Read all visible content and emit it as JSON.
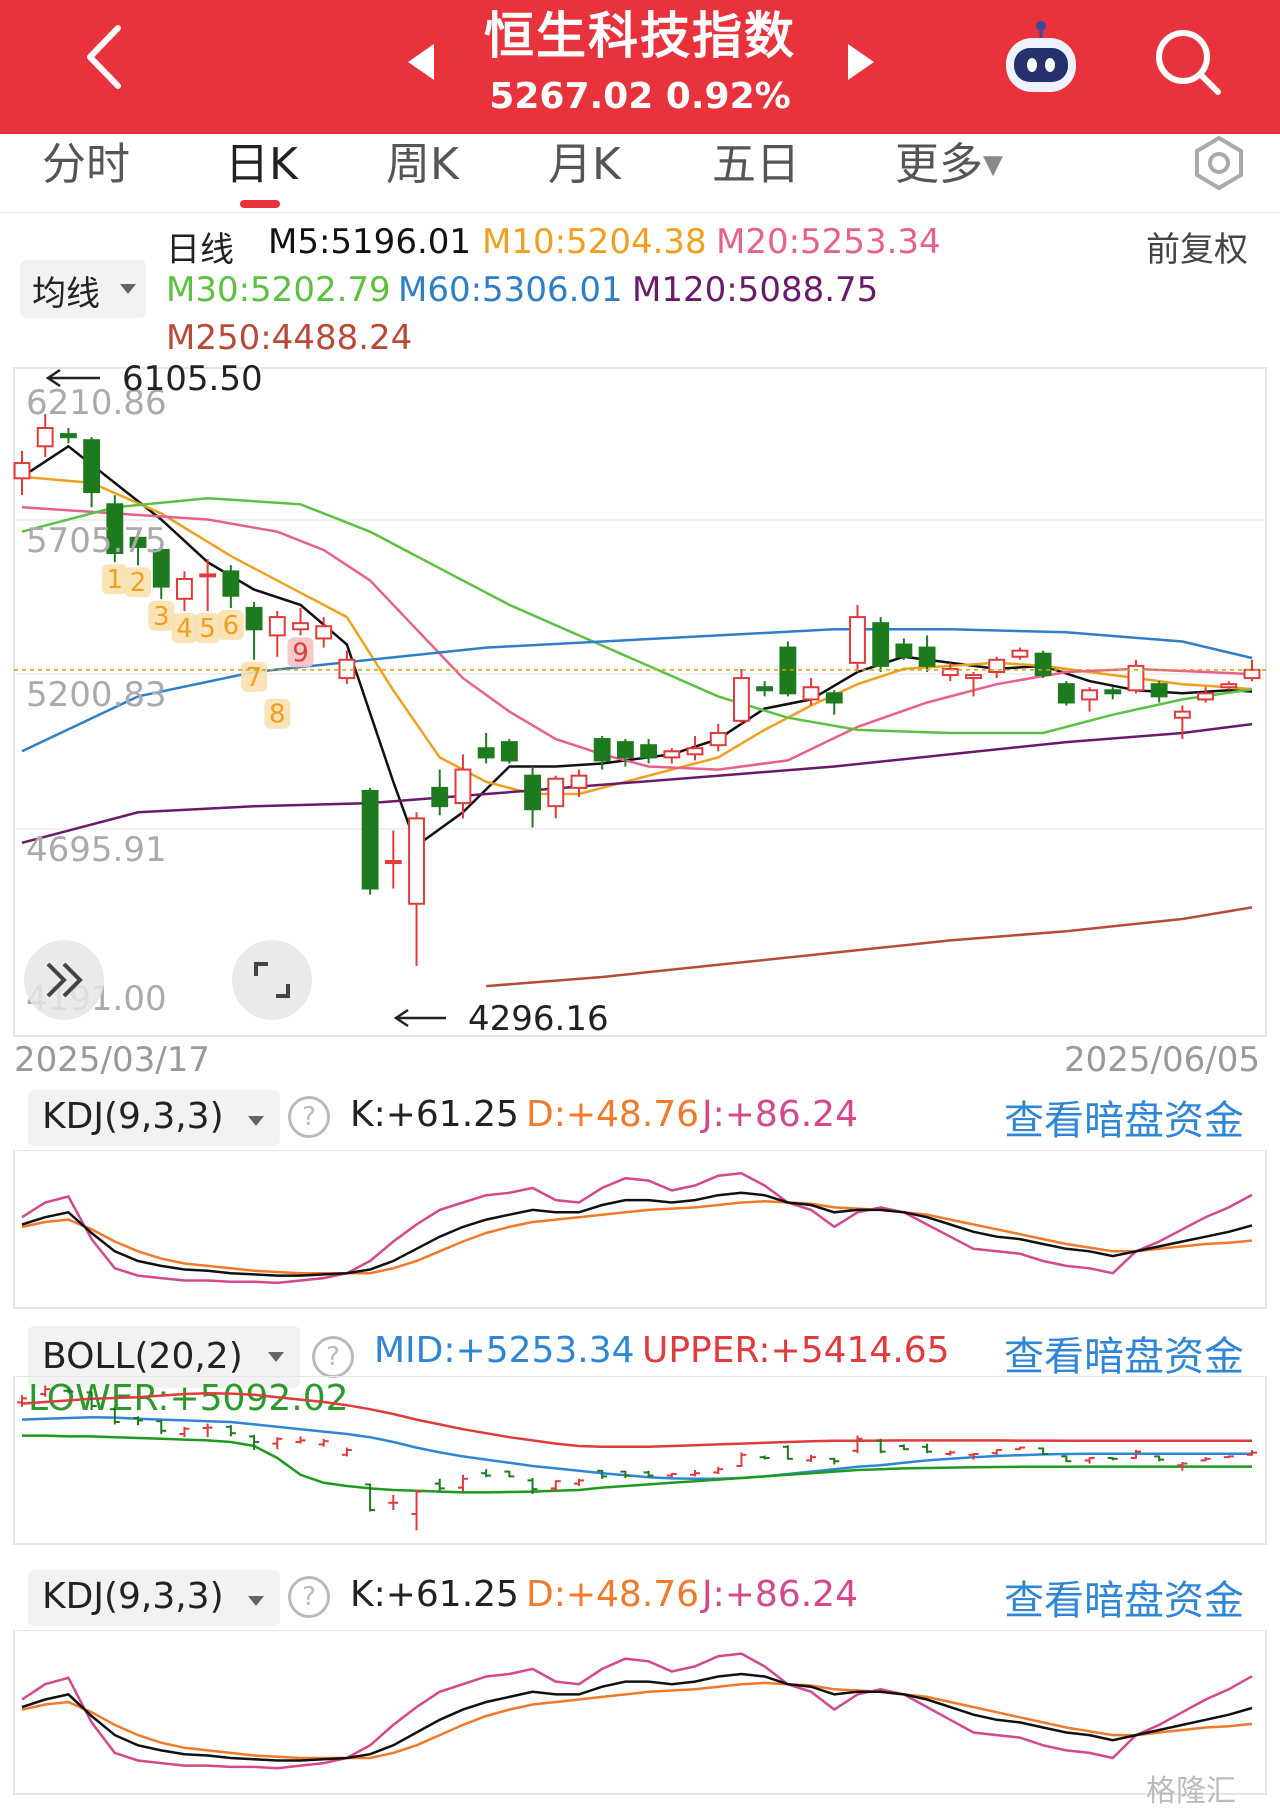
{
  "header": {
    "title": "恒生科技指数",
    "price_line": "5267.02 0.92%",
    "bg_color": "#e8333c"
  },
  "tabs": [
    {
      "label": "分时"
    },
    {
      "label": "日K",
      "active": true
    },
    {
      "label": "周K"
    },
    {
      "label": "月K"
    },
    {
      "label": "五日"
    },
    {
      "label": "更多"
    }
  ],
  "ma_legend": {
    "selector_label": "均线",
    "period_label": "日线",
    "adjust_label": "前复权",
    "items": [
      {
        "text": "M5:5196.01",
        "color": "#111111"
      },
      {
        "text": "M10:5204.38",
        "color": "#f0a020"
      },
      {
        "text": "M20:5253.34",
        "color": "#e8608c"
      },
      {
        "text": "M30:5202.79",
        "color": "#5cc040"
      },
      {
        "text": "M60:5306.01",
        "color": "#2f7fc8"
      },
      {
        "text": "M120:5088.75",
        "color": "#6a1a6a"
      },
      {
        "text": "M250:4488.24",
        "color": "#b84a3a"
      }
    ]
  },
  "main_chart": {
    "y_tick_labels": [
      "6210.86",
      "5705.75",
      "5200.83",
      "4695.91",
      "4191.00"
    ],
    "high_marker": "6105.50",
    "low_marker": "4296.16",
    "current_price_line": 5267.02,
    "date_start": "2025/03/17",
    "date_end": "2025/06/05",
    "td_numbers": [
      "1",
      "2",
      "3",
      "4",
      "5",
      "6",
      "7",
      "8",
      "9"
    ]
  },
  "kdj_panel": {
    "selector_label": "KDJ(9,3,3)",
    "k_text": "K:+61.25",
    "d_text": "D:+48.76",
    "j_text": "J:+86.24",
    "link_text": "查看暗盘资金"
  },
  "boll_panel": {
    "selector_label": "BOLL(20,2)",
    "mid_text": "MID:+5253.34",
    "upper_text": "UPPER:+5414.65",
    "lower_text": "LOWER:+5092.02",
    "link_text": "查看暗盘资金"
  },
  "kdj_panel_2": {
    "selector_label": "KDJ(9,3,3)",
    "k_text": "K:+61.25",
    "d_text": "D:+48.76",
    "j_text": "J:+86.24",
    "link_text": "查看暗盘资金"
  },
  "watermark": "格隆汇",
  "chart_data": {
    "type": "candlestick",
    "title": "恒生科技指数",
    "x_range": [
      "2025/03/17",
      "2025/06/05"
    ],
    "ylim": [
      4191.0,
      6210.86
    ],
    "y_ticks": [
      6210.86,
      5705.75,
      5200.83,
      4695.91,
      4191.0
    ],
    "candles": [
      {
        "o": 5895,
        "c": 5945,
        "h": 5985,
        "l": 5840
      },
      {
        "o": 6000,
        "c": 6060,
        "h": 6105.5,
        "l": 5965
      },
      {
        "o": 6040,
        "c": 6030,
        "h": 6060,
        "l": 6010
      },
      {
        "o": 6020,
        "c": 5850,
        "h": 6030,
        "l": 5800
      },
      {
        "o": 5810,
        "c": 5650,
        "h": 5840,
        "l": 5620
      },
      {
        "o": 5700,
        "c": 5670,
        "h": 5720,
        "l": 5610
      },
      {
        "o": 5660,
        "c": 5540,
        "h": 5680,
        "l": 5500
      },
      {
        "o": 5500,
        "c": 5565,
        "h": 5590,
        "l": 5460
      },
      {
        "o": 5575,
        "c": 5580,
        "h": 5630,
        "l": 5460
      },
      {
        "o": 5590,
        "c": 5510,
        "h": 5610,
        "l": 5470
      },
      {
        "o": 5470,
        "c": 5400,
        "h": 5490,
        "l": 5300
      },
      {
        "o": 5380,
        "c": 5440,
        "h": 5460,
        "l": 5310
      },
      {
        "o": 5400,
        "c": 5420,
        "h": 5470,
        "l": 5380
      },
      {
        "o": 5370,
        "c": 5410,
        "h": 5440,
        "l": 5340
      },
      {
        "o": 5240,
        "c": 5300,
        "h": 5330,
        "l": 5220
      },
      {
        "o": 4870,
        "c": 4550,
        "h": 4880,
        "l": 4530
      },
      {
        "o": 4640,
        "c": 4640,
        "h": 4740,
        "l": 4550
      },
      {
        "o": 4500,
        "c": 4780,
        "h": 4800,
        "l": 4296.16
      },
      {
        "o": 4880,
        "c": 4820,
        "h": 4940,
        "l": 4790
      },
      {
        "o": 4830,
        "c": 4940,
        "h": 4990,
        "l": 4780
      },
      {
        "o": 5010,
        "c": 4980,
        "h": 5060,
        "l": 4960
      },
      {
        "o": 5030,
        "c": 4970,
        "h": 5040,
        "l": 4960
      },
      {
        "o": 4920,
        "c": 4810,
        "h": 4950,
        "l": 4750
      },
      {
        "o": 4820,
        "c": 4910,
        "h": 4920,
        "l": 4780
      },
      {
        "o": 4880,
        "c": 4920,
        "h": 4940,
        "l": 4850
      },
      {
        "o": 5040,
        "c": 4970,
        "h": 5050,
        "l": 4940
      },
      {
        "o": 5030,
        "c": 4980,
        "h": 5040,
        "l": 4950
      },
      {
        "o": 5020,
        "c": 4980,
        "h": 5040,
        "l": 4960
      },
      {
        "o": 4980,
        "c": 5000,
        "h": 5010,
        "l": 4960
      },
      {
        "o": 4990,
        "c": 5010,
        "h": 5050,
        "l": 4970
      },
      {
        "o": 5020,
        "c": 5060,
        "h": 5090,
        "l": 5000
      },
      {
        "o": 5100,
        "c": 5240,
        "h": 5270,
        "l": 5090
      },
      {
        "o": 5210,
        "c": 5200,
        "h": 5230,
        "l": 5180
      },
      {
        "o": 5340,
        "c": 5190,
        "h": 5360,
        "l": 5180
      },
      {
        "o": 5170,
        "c": 5210,
        "h": 5240,
        "l": 5150
      },
      {
        "o": 5190,
        "c": 5160,
        "h": 5200,
        "l": 5120
      },
      {
        "o": 5290,
        "c": 5440,
        "h": 5480,
        "l": 5260
      },
      {
        "o": 5420,
        "c": 5280,
        "h": 5440,
        "l": 5260
      },
      {
        "o": 5350,
        "c": 5310,
        "h": 5370,
        "l": 5300
      },
      {
        "o": 5340,
        "c": 5280,
        "h": 5380,
        "l": 5260
      },
      {
        "o": 5250,
        "c": 5270,
        "h": 5290,
        "l": 5230
      },
      {
        "o": 5240,
        "c": 5250,
        "h": 5260,
        "l": 5180
      },
      {
        "o": 5260,
        "c": 5300,
        "h": 5310,
        "l": 5240
      },
      {
        "o": 5310,
        "c": 5330,
        "h": 5340,
        "l": 5300
      },
      {
        "o": 5320,
        "c": 5250,
        "h": 5330,
        "l": 5240
      },
      {
        "o": 5220,
        "c": 5160,
        "h": 5230,
        "l": 5150
      },
      {
        "o": 5170,
        "c": 5200,
        "h": 5210,
        "l": 5130
      },
      {
        "o": 5200,
        "c": 5190,
        "h": 5210,
        "l": 5170
      },
      {
        "o": 5200,
        "c": 5280,
        "h": 5300,
        "l": 5190
      },
      {
        "o": 5220,
        "c": 5180,
        "h": 5230,
        "l": 5160
      },
      {
        "o": 5110,
        "c": 5130,
        "h": 5150,
        "l": 5040
      },
      {
        "o": 5170,
        "c": 5190,
        "h": 5210,
        "l": 5160
      },
      {
        "o": 5210,
        "c": 5220,
        "h": 5230,
        "l": 5200
      },
      {
        "o": 5240,
        "c": 5267.02,
        "h": 5300,
        "l": 5230
      }
    ],
    "moving_averages": [
      {
        "name": "M5",
        "color": "#111111",
        "values": [
          [
            0,
            5900
          ],
          [
            2,
            6000
          ],
          [
            4,
            5880
          ],
          [
            6,
            5760
          ],
          [
            8,
            5620
          ],
          [
            10,
            5530
          ],
          [
            12,
            5480
          ],
          [
            14,
            5350
          ],
          [
            16,
            4900
          ],
          [
            17,
            4690
          ],
          [
            19,
            4800
          ],
          [
            21,
            4950
          ],
          [
            23,
            4950
          ],
          [
            25,
            4960
          ],
          [
            28,
            4990
          ],
          [
            30,
            5040
          ],
          [
            32,
            5140
          ],
          [
            34,
            5170
          ],
          [
            36,
            5260
          ],
          [
            38,
            5310
          ],
          [
            40,
            5290
          ],
          [
            42,
            5270
          ],
          [
            44,
            5280
          ],
          [
            46,
            5230
          ],
          [
            48,
            5200
          ],
          [
            50,
            5190
          ],
          [
            52,
            5200
          ],
          [
            53,
            5196
          ]
        ]
      },
      {
        "name": "M10",
        "color": "#f0a020",
        "values": [
          [
            0,
            5900
          ],
          [
            3,
            5880
          ],
          [
            6,
            5780
          ],
          [
            9,
            5640
          ],
          [
            12,
            5520
          ],
          [
            14,
            5440
          ],
          [
            16,
            5200
          ],
          [
            18,
            4980
          ],
          [
            20,
            4900
          ],
          [
            22,
            4860
          ],
          [
            24,
            4860
          ],
          [
            26,
            4900
          ],
          [
            28,
            4940
          ],
          [
            30,
            4980
          ],
          [
            32,
            5070
          ],
          [
            34,
            5150
          ],
          [
            36,
            5220
          ],
          [
            38,
            5270
          ],
          [
            40,
            5280
          ],
          [
            42,
            5290
          ],
          [
            44,
            5280
          ],
          [
            46,
            5260
          ],
          [
            48,
            5240
          ],
          [
            50,
            5220
          ],
          [
            52,
            5210
          ],
          [
            53,
            5204
          ]
        ]
      },
      {
        "name": "M20",
        "color": "#e8608c",
        "values": [
          [
            0,
            5800
          ],
          [
            4,
            5780
          ],
          [
            8,
            5760
          ],
          [
            11,
            5720
          ],
          [
            13,
            5660
          ],
          [
            15,
            5560
          ],
          [
            17,
            5400
          ],
          [
            19,
            5240
          ],
          [
            21,
            5130
          ],
          [
            23,
            5040
          ],
          [
            25,
            4990
          ],
          [
            27,
            4950
          ],
          [
            30,
            4940
          ],
          [
            33,
            4970
          ],
          [
            36,
            5080
          ],
          [
            39,
            5160
          ],
          [
            42,
            5220
          ],
          [
            45,
            5260
          ],
          [
            48,
            5270
          ],
          [
            51,
            5260
          ],
          [
            53,
            5253
          ]
        ]
      },
      {
        "name": "M30",
        "color": "#5cc040",
        "values": [
          [
            0,
            5720
          ],
          [
            4,
            5800
          ],
          [
            8,
            5830
          ],
          [
            12,
            5810
          ],
          [
            15,
            5720
          ],
          [
            18,
            5600
          ],
          [
            21,
            5480
          ],
          [
            24,
            5380
          ],
          [
            27,
            5280
          ],
          [
            30,
            5180
          ],
          [
            33,
            5110
          ],
          [
            36,
            5070
          ],
          [
            40,
            5060
          ],
          [
            44,
            5060
          ],
          [
            47,
            5120
          ],
          [
            50,
            5170
          ],
          [
            53,
            5203
          ]
        ]
      },
      {
        "name": "M60",
        "color": "#2f7fc8",
        "values": [
          [
            0,
            5000
          ],
          [
            5,
            5180
          ],
          [
            10,
            5260
          ],
          [
            15,
            5300
          ],
          [
            20,
            5340
          ],
          [
            25,
            5360
          ],
          [
            30,
            5380
          ],
          [
            35,
            5400
          ],
          [
            40,
            5400
          ],
          [
            45,
            5390
          ],
          [
            50,
            5360
          ],
          [
            53,
            5306
          ]
        ]
      },
      {
        "name": "M120",
        "color": "#6a1a6a",
        "values": [
          [
            0,
            4700
          ],
          [
            5,
            4800
          ],
          [
            10,
            4820
          ],
          [
            15,
            4830
          ],
          [
            20,
            4860
          ],
          [
            25,
            4890
          ],
          [
            30,
            4920
          ],
          [
            35,
            4950
          ],
          [
            40,
            4990
          ],
          [
            45,
            5030
          ],
          [
            50,
            5060
          ],
          [
            53,
            5089
          ]
        ]
      },
      {
        "name": "M250",
        "color": "#b84a3a",
        "values": [
          [
            20,
            4230
          ],
          [
            25,
            4260
          ],
          [
            30,
            4300
          ],
          [
            35,
            4340
          ],
          [
            40,
            4380
          ],
          [
            45,
            4410
          ],
          [
            50,
            4450
          ],
          [
            53,
            4488
          ]
        ]
      }
    ],
    "kdj": {
      "k": [
        62,
        68,
        72,
        55,
        40,
        32,
        28,
        25,
        24,
        22,
        21,
        20,
        20,
        21,
        22,
        25,
        32,
        42,
        52,
        60,
        66,
        70,
        74,
        72,
        72,
        78,
        82,
        82,
        80,
        82,
        86,
        88,
        86,
        80,
        78,
        72,
        74,
        74,
        72,
        68,
        62,
        56,
        52,
        50,
        46,
        42,
        40,
        36,
        40,
        44,
        48,
        52,
        56,
        61.25
      ],
      "d": [
        60,
        64,
        66,
        58,
        48,
        40,
        34,
        30,
        28,
        26,
        24,
        23,
        22,
        22,
        22,
        22,
        26,
        32,
        40,
        48,
        55,
        60,
        64,
        66,
        68,
        70,
        72,
        74,
        75,
        76,
        78,
        80,
        81,
        80,
        79,
        76,
        75,
        74,
        72,
        70,
        66,
        62,
        58,
        54,
        50,
        46,
        43,
        40,
        40,
        42,
        44,
        46,
        47,
        48.76
      ],
      "j": [
        68,
        80,
        85,
        50,
        26,
        20,
        18,
        16,
        16,
        15,
        15,
        14,
        16,
        18,
        22,
        32,
        48,
        62,
        74,
        80,
        86,
        88,
        92,
        82,
        80,
        92,
        100,
        98,
        90,
        94,
        102,
        104,
        94,
        80,
        74,
        60,
        72,
        76,
        72,
        62,
        52,
        42,
        40,
        38,
        32,
        28,
        26,
        22,
        40,
        48,
        58,
        68,
        76,
        86.24
      ]
    },
    "boll": {
      "mid": [
        5680,
        5690,
        5700,
        5710,
        5705,
        5690,
        5680,
        5670,
        5660,
        5650,
        5620,
        5590,
        5560,
        5530,
        5500,
        5460,
        5400,
        5330,
        5270,
        5220,
        5180,
        5140,
        5100,
        5070,
        5040,
        5010,
        4985,
        4960,
        4945,
        4940,
        4940,
        4950,
        4970,
        5000,
        5030,
        5060,
        5090,
        5110,
        5140,
        5170,
        5190,
        5210,
        5225,
        5235,
        5245,
        5250,
        5252,
        5253,
        5253,
        5253,
        5253,
        5253,
        5253,
        5253.34
      ],
      "upper": [
        5880,
        5900,
        5920,
        5940,
        5950,
        5960,
        5980,
        6000,
        6010,
        6005,
        5990,
        5960,
        5930,
        5900,
        5860,
        5810,
        5750,
        5680,
        5620,
        5560,
        5510,
        5460,
        5420,
        5380,
        5350,
        5340,
        5340,
        5340,
        5350,
        5360,
        5370,
        5380,
        5390,
        5400,
        5410,
        5415,
        5415,
        5418,
        5420,
        5420,
        5420,
        5420,
        5420,
        5418,
        5418,
        5416,
        5416,
        5415,
        5415,
        5415,
        5415,
        5415,
        5415,
        5414.65
      ],
      "lower": [
        5480,
        5480,
        5470,
        5470,
        5460,
        5450,
        5440,
        5430,
        5420,
        5400,
        5350,
        5200,
        4990,
        4890,
        4850,
        4820,
        4800,
        4790,
        4780,
        4770,
        4770,
        4775,
        4780,
        4790,
        4800,
        4830,
        4850,
        4870,
        4890,
        4910,
        4930,
        4950,
        4970,
        4990,
        5010,
        5030,
        5050,
        5060,
        5070,
        5075,
        5080,
        5085,
        5088,
        5090,
        5091,
        5091,
        5092,
        5092,
        5092,
        5092,
        5092,
        5092,
        5092,
        5092.02
      ]
    }
  }
}
